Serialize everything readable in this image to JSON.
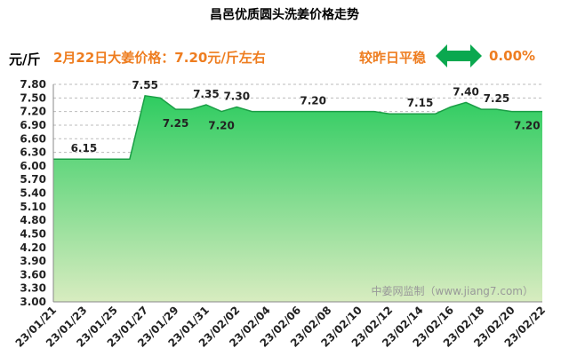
{
  "title": "昌邑优质圆头洗姜价格走势",
  "unit": "元/斤",
  "headline": "2月22日大姜价格：7.20元/斤左右",
  "compare_label": "较昨日平稳",
  "change_value": "0.00%",
  "icons": {
    "trend": "double-arrow-icon"
  },
  "colors": {
    "accent": "#ee7d20",
    "fill_top": "#2ecc60",
    "fill_bottom": "#d8ecc0",
    "line": "#1a9e45"
  },
  "chart_data": {
    "type": "area",
    "x": [
      "23/01/21",
      "23/01/22",
      "23/01/23",
      "23/01/24",
      "23/01/25",
      "23/01/26",
      "23/01/27",
      "23/01/28",
      "23/01/29",
      "23/01/30",
      "23/01/31",
      "23/02/01",
      "23/02/02",
      "23/02/03",
      "23/02/04",
      "23/02/05",
      "23/02/06",
      "23/02/07",
      "23/02/08",
      "23/02/09",
      "23/02/10",
      "23/02/11",
      "23/02/12",
      "23/02/13",
      "23/02/14",
      "23/02/15",
      "23/02/16",
      "23/02/17",
      "23/02/18",
      "23/02/19",
      "23/02/20",
      "23/02/21",
      "23/02/22"
    ],
    "values": [
      6.15,
      6.15,
      6.15,
      6.15,
      6.15,
      6.15,
      7.55,
      7.5,
      7.25,
      7.25,
      7.35,
      7.2,
      7.3,
      7.2,
      7.2,
      7.2,
      7.2,
      7.2,
      7.2,
      7.2,
      7.2,
      7.2,
      7.15,
      7.15,
      7.15,
      7.15,
      7.3,
      7.4,
      7.25,
      7.25,
      7.2,
      7.2,
      7.2
    ],
    "x_tick_labels": [
      "23/01/21",
      "23/01/23",
      "23/01/25",
      "23/01/27",
      "23/01/29",
      "23/01/31",
      "23/02/02",
      "23/02/04",
      "23/02/06",
      "23/02/08",
      "23/02/10",
      "23/02/12",
      "23/02/14",
      "23/02/16",
      "23/02/18",
      "23/02/20",
      "23/02/22"
    ],
    "y_ticks": [
      "7.80",
      "7.50",
      "7.20",
      "6.90",
      "6.60",
      "6.30",
      "6.00",
      "5.70",
      "5.40",
      "5.10",
      "4.80",
      "4.50",
      "4.20",
      "3.90",
      "3.60",
      "3.30",
      "3.00"
    ],
    "ylim": [
      3.0,
      7.8
    ],
    "data_labels": [
      {
        "index": 2,
        "text": "6.15",
        "pos": "above"
      },
      {
        "index": 6,
        "text": "7.55",
        "pos": "above"
      },
      {
        "index": 8,
        "text": "7.25",
        "pos": "below"
      },
      {
        "index": 10,
        "text": "7.35",
        "pos": "above"
      },
      {
        "index": 11,
        "text": "7.20",
        "pos": "below"
      },
      {
        "index": 12,
        "text": "7.30",
        "pos": "above"
      },
      {
        "index": 17,
        "text": "7.20",
        "pos": "above"
      },
      {
        "index": 24,
        "text": "7.15",
        "pos": "above"
      },
      {
        "index": 27,
        "text": "7.40",
        "pos": "above"
      },
      {
        "index": 29,
        "text": "7.25",
        "pos": "above"
      },
      {
        "index": 31,
        "text": "7.20",
        "pos": "below"
      }
    ],
    "watermark": "中姜网监制（www.jiang7.com）",
    "grid": true
  }
}
